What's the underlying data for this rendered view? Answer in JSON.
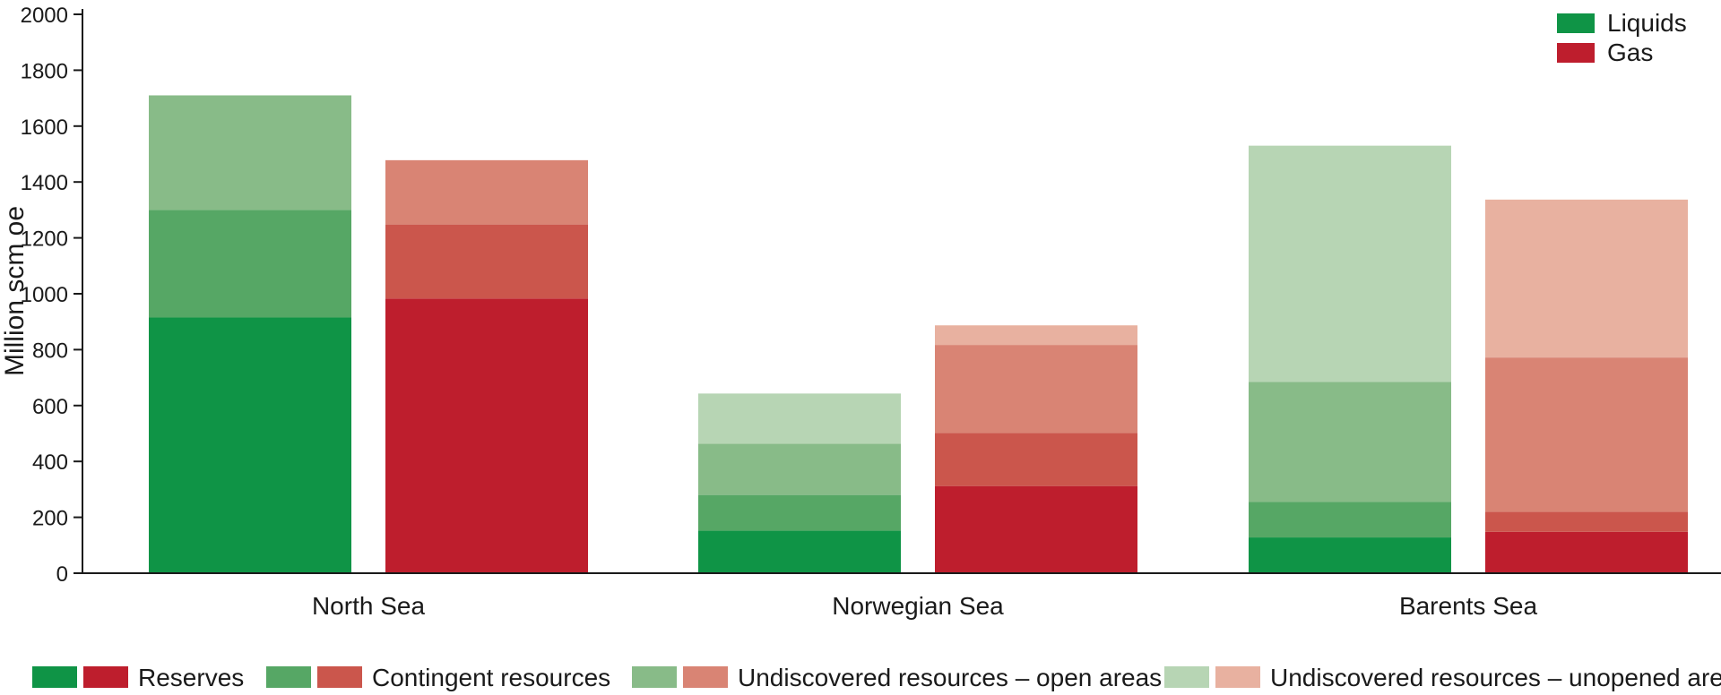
{
  "chart_data": {
    "type": "bar",
    "stacked": true,
    "title": "",
    "xlabel": "",
    "ylabel": "Million scm oe",
    "ylim": [
      0,
      2000
    ],
    "yticks": [
      "0",
      "200",
      "400",
      "600",
      "800",
      "1000",
      "1200",
      "1400",
      "1600",
      "1800",
      "2000"
    ],
    "grid": false,
    "categories": [
      "North Sea",
      "Norwegian Sea",
      "Barents Sea"
    ],
    "bar_groups": [
      "Liquids",
      "Gas"
    ],
    "stack_layers": [
      "Reserves",
      "Contingent resources",
      "Undiscovered resources – open areas",
      "Undiscovered resources – unopened areas"
    ],
    "series": [
      {
        "group": "Liquids",
        "layer": "Reserves",
        "values": [
          915,
          152,
          128
        ]
      },
      {
        "group": "Liquids",
        "layer": "Contingent resources",
        "values": [
          385,
          128,
          127
        ]
      },
      {
        "group": "Liquids",
        "layer": "Undiscovered resources – open areas",
        "values": [
          410,
          183,
          430
        ]
      },
      {
        "group": "Liquids",
        "layer": "Undiscovered resources – unopened areas",
        "values": [
          0,
          180,
          845
        ]
      },
      {
        "group": "Gas",
        "layer": "Reserves",
        "values": [
          983,
          312,
          148
        ]
      },
      {
        "group": "Gas",
        "layer": "Contingent resources",
        "values": [
          265,
          190,
          72
        ]
      },
      {
        "group": "Gas",
        "layer": "Undiscovered resources – open areas",
        "values": [
          230,
          315,
          552
        ]
      },
      {
        "group": "Gas",
        "layer": "Undiscovered resources – unopened areas",
        "values": [
          0,
          70,
          565
        ]
      }
    ],
    "colors": {
      "Liquids": [
        "#0f9446",
        "#56a765",
        "#88bb88",
        "#b7d5b4"
      ],
      "Gas": [
        "#be1e2d",
        "#cb564c",
        "#d98474",
        "#e8b1a0"
      ]
    },
    "legend": {
      "placement": "top-right",
      "entries": [
        {
          "label": "Liquids",
          "color": "#0f9446"
        },
        {
          "label": "Gas",
          "color": "#be1e2d"
        }
      ]
    },
    "bottom_legend": {
      "placement": "bottom",
      "entries": [
        {
          "label": "Reserves",
          "colors": [
            "#0f9446",
            "#be1e2d"
          ]
        },
        {
          "label": "Contingent resources",
          "colors": [
            "#56a765",
            "#cb564c"
          ]
        },
        {
          "label": "Undiscovered resources – open areas",
          "colors": [
            "#88bb88",
            "#d98474"
          ]
        },
        {
          "label": "Undiscovered resources – unopened areas",
          "colors": [
            "#b7d5b4",
            "#e8b1a0"
          ]
        }
      ]
    }
  }
}
